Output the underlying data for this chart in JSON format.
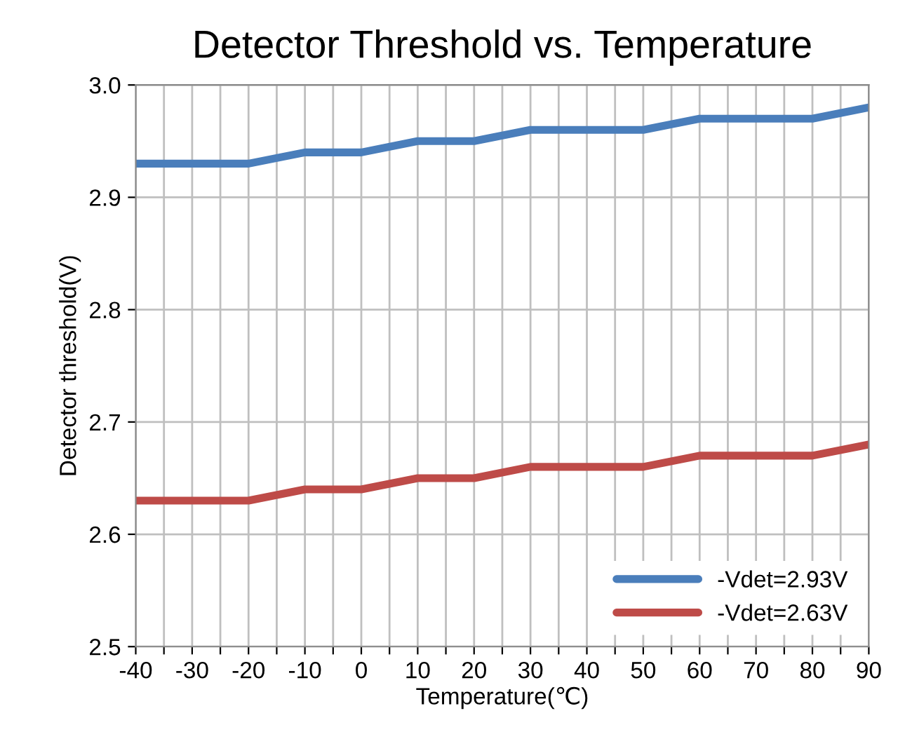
{
  "chart_data": {
    "type": "line",
    "title": "Detector Threshold vs. Temperature",
    "xlabel": "Temperature(℃)",
    "ylabel": "Detector threshold(V)",
    "x": [
      -40,
      -30,
      -20,
      -10,
      0,
      10,
      20,
      30,
      40,
      50,
      60,
      70,
      80,
      90
    ],
    "series": [
      {
        "name": "-Vdet=2.93V",
        "color": "#4a7ebb",
        "values": [
          2.93,
          2.93,
          2.93,
          2.94,
          2.94,
          2.95,
          2.95,
          2.96,
          2.96,
          2.96,
          2.97,
          2.97,
          2.97,
          2.98
        ]
      },
      {
        "name": "-Vdet=2.63V",
        "color": "#be4b48",
        "values": [
          2.63,
          2.63,
          2.63,
          2.64,
          2.64,
          2.65,
          2.65,
          2.66,
          2.66,
          2.66,
          2.67,
          2.67,
          2.67,
          2.68
        ]
      }
    ],
    "xlim": [
      -40,
      90
    ],
    "xticks": [
      -40,
      {
        "value": -35,
        "label": null
      },
      -30,
      {
        "value": -25,
        "label": null
      },
      -20,
      {
        "value": -15,
        "label": null
      },
      -10,
      {
        "value": -5,
        "label": null
      },
      0,
      {
        "value": 5,
        "label": null
      },
      10,
      {
        "value": 15,
        "label": null
      },
      20,
      {
        "value": 25,
        "label": null
      },
      30,
      {
        "value": 35,
        "label": null
      },
      40,
      {
        "value": 45,
        "label": null
      },
      50,
      {
        "value": 55,
        "label": null
      },
      60,
      {
        "value": 65,
        "label": null
      },
      70,
      {
        "value": 75,
        "label": null
      },
      80,
      {
        "value": 85,
        "label": null
      },
      90
    ],
    "ylim": [
      2.5,
      3.0
    ],
    "yticks": [
      {
        "value": 2.5,
        "label": "2.5"
      },
      {
        "value": 2.6,
        "label": "2.6"
      },
      {
        "value": 2.7,
        "label": "2.7"
      },
      {
        "value": 2.8,
        "label": "2.8"
      },
      {
        "value": 2.9,
        "label": "2.9"
      },
      {
        "value": 3.0,
        "label": "3.0"
      }
    ],
    "grid": true,
    "legend": "bottom right",
    "marker": "none",
    "line_style": "solid"
  }
}
